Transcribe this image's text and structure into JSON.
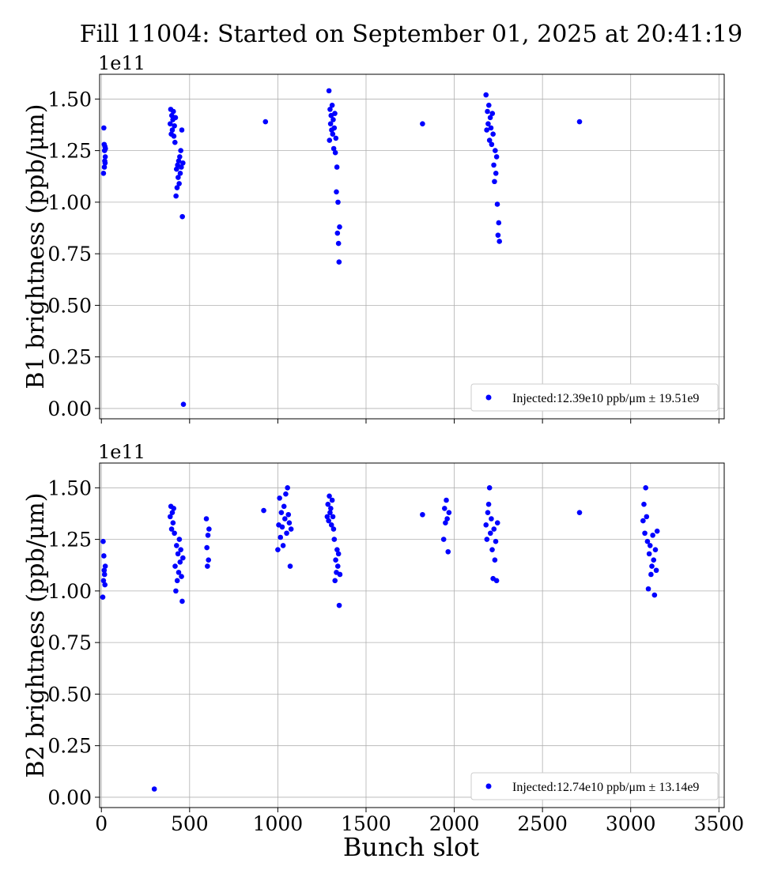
{
  "title": "Fill 11004: Started on September 01, 2025 at 20:41:19",
  "xlabel": "Bunch slot",
  "colors": {
    "marker": "#0000ff",
    "grid": "#b0b0b0",
    "axes": "#000000",
    "legend_border": "#cccccc"
  },
  "chart_data": [
    {
      "type": "scatter",
      "ylabel": "B1 brightness (ppb/μm)",
      "offset_label": "1e11",
      "xlim": [
        -10,
        3530
      ],
      "ylim": [
        -0.05,
        1.62
      ],
      "yticks": [
        "0.00",
        "0.25",
        "0.50",
        "0.75",
        "1.00",
        "1.25",
        "1.50"
      ],
      "grid": true,
      "legend": {
        "placement": "lower-right",
        "label": "Injected:12.39e10 ppb/μm ± 19.51e9"
      },
      "series": [
        {
          "x": [
            12,
            14,
            16,
            17,
            18,
            19,
            20,
            21,
            22,
            23,
            390,
            393,
            396,
            399,
            402,
            405,
            408,
            411,
            414,
            417,
            420,
            423,
            426,
            429,
            432,
            435,
            438,
            441,
            444,
            447,
            450,
            453,
            456,
            459,
            462,
            465,
            930,
            1290,
            1293,
            1296,
            1299,
            1302,
            1305,
            1308,
            1311,
            1314,
            1317,
            1320,
            1323,
            1326,
            1329,
            1332,
            1335,
            1338,
            1341,
            1344,
            1347,
            1350,
            1820,
            2180,
            2184,
            2188,
            2192,
            2196,
            2200,
            2204,
            2208,
            2212,
            2216,
            2220,
            2224,
            2228,
            2232,
            2236,
            2240,
            2244,
            2248,
            2252,
            2256,
            2710
          ],
          "y": [
            1.14,
            1.36,
            1.28,
            1.17,
            1.25,
            1.2,
            1.27,
            1.19,
            1.22,
            1.26,
            1.38,
            1.45,
            1.33,
            1.42,
            1.35,
            1.4,
            1.44,
            1.32,
            1.37,
            1.29,
            1.41,
            1.03,
            1.16,
            1.07,
            1.18,
            1.12,
            1.2,
            1.09,
            1.22,
            1.14,
            1.25,
            1.17,
            1.35,
            0.93,
            1.19,
            0.02,
            1.39,
            1.54,
            1.3,
            1.45,
            1.38,
            1.42,
            1.35,
            1.47,
            1.33,
            1.4,
            1.26,
            1.36,
            1.43,
            1.24,
            1.31,
            1.05,
            1.17,
            0.85,
            1.0,
            0.8,
            0.71,
            0.88,
            1.38,
            1.52,
            1.35,
            1.44,
            1.38,
            1.47,
            1.3,
            1.41,
            1.36,
            1.28,
            1.43,
            1.33,
            1.18,
            1.1,
            1.25,
            1.14,
            1.22,
            0.99,
            0.84,
            0.9,
            0.81,
            1.39
          ]
        }
      ]
    },
    {
      "type": "scatter",
      "ylabel": "B2 brightness (ppb/μm)",
      "offset_label": "1e11",
      "xlim": [
        -10,
        3530
      ],
      "ylim": [
        -0.05,
        1.62
      ],
      "yticks": [
        "0.00",
        "0.25",
        "0.50",
        "0.75",
        "1.00",
        "1.25",
        "1.50"
      ],
      "xticks": [
        "0",
        "500",
        "1000",
        "1500",
        "2000",
        "2500",
        "3000",
        "3500"
      ],
      "grid": true,
      "legend": {
        "placement": "lower-right",
        "label": "Injected:12.74e10 ppb/μm ± 13.14e9"
      },
      "series": [
        {
          "x": [
            8,
            10,
            12,
            14,
            16,
            18,
            20,
            22,
            300,
            390,
            394,
            398,
            402,
            406,
            410,
            414,
            418,
            422,
            426,
            430,
            434,
            438,
            442,
            446,
            450,
            454,
            458,
            462,
            595,
            598,
            601,
            604,
            607,
            610,
            920,
            1000,
            1005,
            1010,
            1015,
            1020,
            1025,
            1030,
            1035,
            1040,
            1045,
            1050,
            1055,
            1060,
            1065,
            1070,
            1075,
            1280,
            1284,
            1288,
            1292,
            1296,
            1300,
            1304,
            1308,
            1312,
            1316,
            1320,
            1324,
            1328,
            1332,
            1336,
            1340,
            1344,
            1348,
            1352,
            1820,
            1940,
            1945,
            1950,
            1955,
            1960,
            1965,
            1970,
            2180,
            2185,
            2190,
            2195,
            2200,
            2205,
            2210,
            2215,
            2220,
            2225,
            2230,
            2235,
            2240,
            2245,
            2710,
            3070,
            3075,
            3080,
            3085,
            3090,
            3095,
            3100,
            3105,
            3110,
            3115,
            3120,
            3125,
            3130,
            3135,
            3140,
            3145,
            3150
          ],
          "y": [
            0.97,
            1.24,
            1.05,
            1.17,
            1.1,
            1.08,
            1.03,
            1.12,
            0.04,
            1.36,
            1.41,
            1.3,
            1.38,
            1.33,
            1.4,
            1.28,
            1.12,
            1.0,
            1.22,
            1.05,
            1.18,
            1.09,
            1.25,
            1.14,
            1.2,
            1.07,
            0.95,
            1.16,
            1.35,
            1.21,
            1.12,
            1.27,
            1.15,
            1.3,
            1.39,
            1.2,
            1.32,
            1.45,
            1.26,
            1.38,
            1.31,
            1.22,
            1.41,
            1.35,
            1.47,
            1.28,
            1.5,
            1.37,
            1.33,
            1.12,
            1.3,
            1.36,
            1.42,
            1.34,
            1.46,
            1.38,
            1.4,
            1.32,
            1.44,
            1.36,
            1.3,
            1.25,
            1.05,
            1.15,
            1.09,
            1.2,
            1.12,
            1.18,
            0.93,
            1.08,
            1.37,
            1.25,
            1.4,
            1.33,
            1.44,
            1.35,
            1.19,
            1.38,
            1.32,
            1.25,
            1.38,
            1.42,
            1.5,
            1.28,
            1.35,
            1.2,
            1.06,
            1.3,
            1.15,
            1.24,
            1.05,
            1.33,
            1.38,
            1.34,
            1.42,
            1.28,
            1.5,
            1.36,
            1.24,
            1.01,
            1.18,
            1.22,
            1.08,
            1.12,
            1.27,
            1.15,
            0.98,
            1.2,
            1.1,
            1.29
          ]
        }
      ]
    }
  ]
}
